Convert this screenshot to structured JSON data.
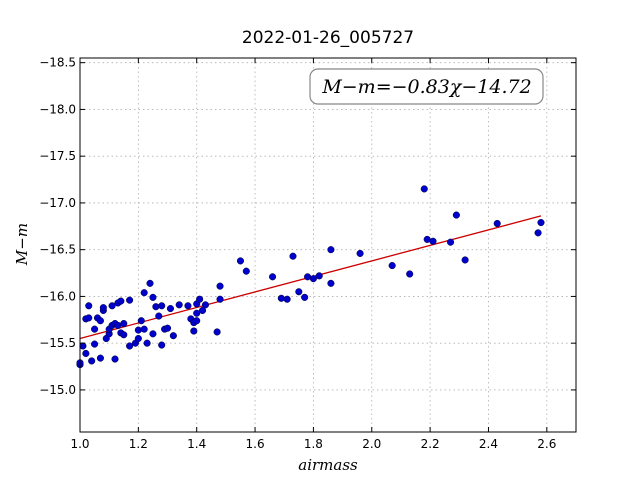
{
  "chart_data": {
    "type": "scatter",
    "title": "2022-01-26_005727",
    "xlabel": "airmass",
    "ylabel": "M−m",
    "xlim": [
      1.0,
      2.7
    ],
    "ylim": [
      -18.55,
      -14.55
    ],
    "x_ticks": [
      "1.0",
      "1.2",
      "1.4",
      "1.6",
      "1.8",
      "2.0",
      "2.2",
      "2.4",
      "2.6"
    ],
    "y_ticks": [
      "−15.0",
      "−15.5",
      "−16.0",
      "−16.5",
      "−17.0",
      "−17.5",
      "−18.0",
      "−18.5"
    ],
    "y_inverted": true,
    "grid": true,
    "annotation": "M−m=−0.83χ−14.72",
    "annotation_placement": "top-right",
    "point_color": "#0000cc",
    "line_color": "#cc0000",
    "fit": {
      "slope": -0.83,
      "intercept": -14.72,
      "x_range": [
        1.0,
        2.58
      ]
    },
    "points": [
      [
        1.0,
        -15.27
      ],
      [
        1.0,
        -15.29
      ],
      [
        1.01,
        -15.47
      ],
      [
        1.02,
        -15.76
      ],
      [
        1.02,
        -15.39
      ],
      [
        1.03,
        -15.77
      ],
      [
        1.03,
        -15.9
      ],
      [
        1.04,
        -15.31
      ],
      [
        1.05,
        -15.65
      ],
      [
        1.05,
        -15.49
      ],
      [
        1.06,
        -15.77
      ],
      [
        1.07,
        -15.74
      ],
      [
        1.07,
        -15.34
      ],
      [
        1.08,
        -15.85
      ],
      [
        1.08,
        -15.88
      ],
      [
        1.09,
        -15.55
      ],
      [
        1.1,
        -15.6
      ],
      [
        1.1,
        -15.65
      ],
      [
        1.11,
        -15.9
      ],
      [
        1.11,
        -15.69
      ],
      [
        1.12,
        -15.33
      ],
      [
        1.12,
        -15.71
      ],
      [
        1.13,
        -15.93
      ],
      [
        1.13,
        -15.69
      ],
      [
        1.14,
        -15.61
      ],
      [
        1.14,
        -15.95
      ],
      [
        1.15,
        -15.71
      ],
      [
        1.15,
        -15.59
      ],
      [
        1.17,
        -15.47
      ],
      [
        1.17,
        -15.96
      ],
      [
        1.19,
        -15.5
      ],
      [
        1.2,
        -15.55
      ],
      [
        1.2,
        -15.64
      ],
      [
        1.21,
        -15.74
      ],
      [
        1.22,
        -16.04
      ],
      [
        1.22,
        -15.65
      ],
      [
        1.23,
        -15.5
      ],
      [
        1.24,
        -16.14
      ],
      [
        1.25,
        -15.99
      ],
      [
        1.25,
        -15.6
      ],
      [
        1.26,
        -15.89
      ],
      [
        1.27,
        -15.79
      ],
      [
        1.28,
        -15.9
      ],
      [
        1.28,
        -15.48
      ],
      [
        1.29,
        -15.65
      ],
      [
        1.3,
        -15.66
      ],
      [
        1.31,
        -15.87
      ],
      [
        1.32,
        -15.58
      ],
      [
        1.34,
        -15.91
      ],
      [
        1.37,
        -15.9
      ],
      [
        1.38,
        -15.76
      ],
      [
        1.39,
        -15.63
      ],
      [
        1.39,
        -15.72
      ],
      [
        1.4,
        -15.74
      ],
      [
        1.4,
        -15.82
      ],
      [
        1.4,
        -15.92
      ],
      [
        1.41,
        -15.97
      ],
      [
        1.42,
        -15.85
      ],
      [
        1.43,
        -15.91
      ],
      [
        1.47,
        -15.62
      ],
      [
        1.48,
        -15.97
      ],
      [
        1.48,
        -16.11
      ],
      [
        1.55,
        -16.38
      ],
      [
        1.57,
        -16.27
      ],
      [
        1.66,
        -16.21
      ],
      [
        1.69,
        -15.98
      ],
      [
        1.71,
        -15.97
      ],
      [
        1.73,
        -16.43
      ],
      [
        1.75,
        -16.05
      ],
      [
        1.77,
        -15.99
      ],
      [
        1.78,
        -16.21
      ],
      [
        1.8,
        -16.19
      ],
      [
        1.82,
        -16.22
      ],
      [
        1.86,
        -16.14
      ],
      [
        1.86,
        -16.5
      ],
      [
        1.96,
        -16.46
      ],
      [
        2.07,
        -16.33
      ],
      [
        2.13,
        -16.24
      ],
      [
        2.18,
        -17.15
      ],
      [
        2.19,
        -16.61
      ],
      [
        2.21,
        -16.59
      ],
      [
        2.27,
        -16.58
      ],
      [
        2.29,
        -16.87
      ],
      [
        2.32,
        -16.39
      ],
      [
        2.43,
        -16.78
      ],
      [
        2.57,
        -16.68
      ],
      [
        2.58,
        -16.79
      ]
    ]
  }
}
